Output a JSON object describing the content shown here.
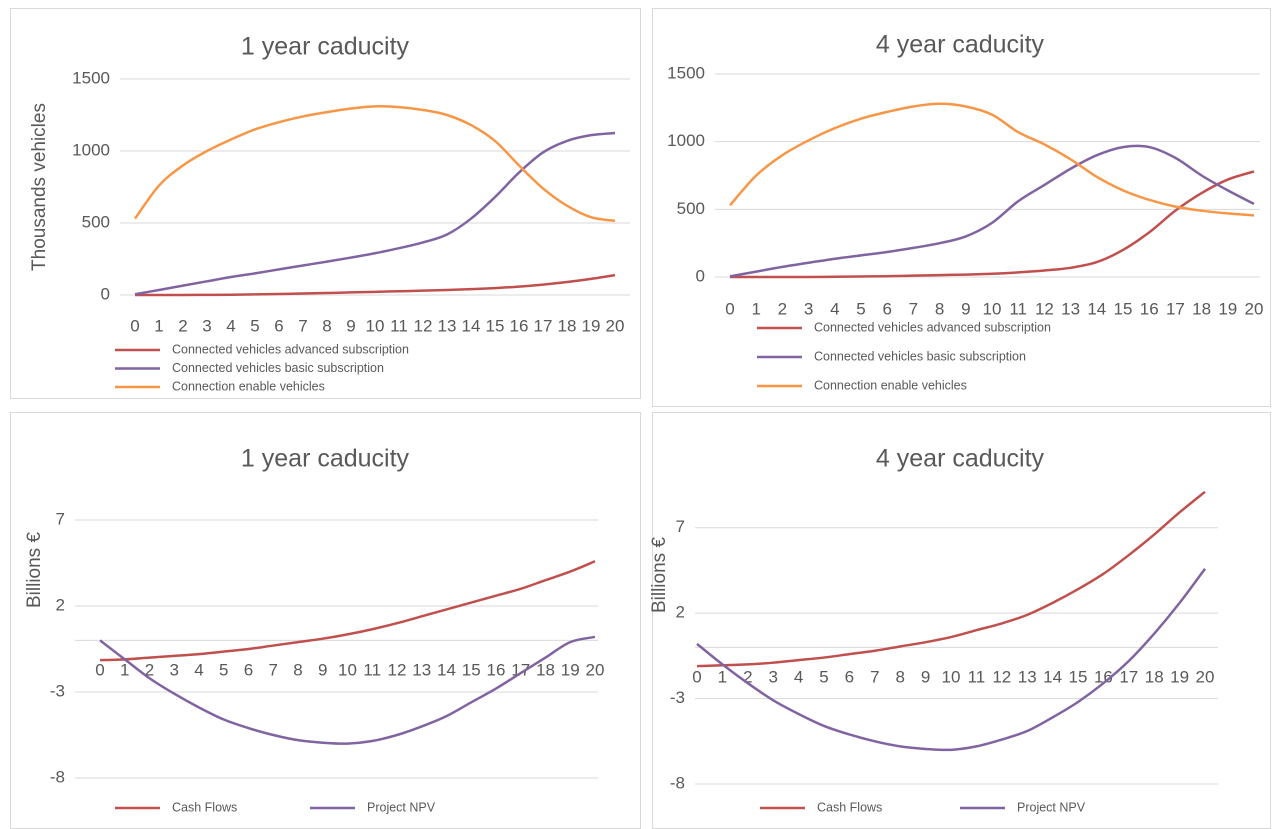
{
  "chart_data": [
    {
      "type": "line",
      "title": "1 year caducity",
      "y_label": "Thousands vehicles",
      "categories": [
        "0",
        "1",
        "2",
        "3",
        "4",
        "5",
        "6",
        "7",
        "8",
        "9",
        "10",
        "11",
        "12",
        "13",
        "14",
        "15",
        "16",
        "17",
        "18",
        "19",
        "20"
      ],
      "series": [
        {
          "name": "Connected vehicles advanced subscription",
          "color": "#c0504d",
          "values": [
            0,
            0,
            0,
            1,
            2,
            4,
            7,
            10,
            14,
            18,
            22,
            26,
            30,
            35,
            41,
            48,
            58,
            72,
            90,
            112,
            138
          ]
        },
        {
          "name": "Connected vehicles basic subscription",
          "color": "#8064a2",
          "values": [
            5,
            35,
            65,
            95,
            125,
            150,
            178,
            205,
            232,
            260,
            290,
            325,
            365,
            420,
            530,
            680,
            850,
            990,
            1070,
            1110,
            1125
          ]
        },
        {
          "name": "Connection enable vehicles",
          "color": "#f79646",
          "values": [
            530,
            760,
            900,
            1000,
            1080,
            1150,
            1200,
            1240,
            1270,
            1295,
            1310,
            1305,
            1285,
            1250,
            1180,
            1070,
            900,
            740,
            620,
            540,
            515
          ]
        }
      ],
      "ylim": [
        0,
        1500
      ],
      "yticks": [
        0,
        500,
        1000,
        1500
      ],
      "grid": true,
      "legend": "bottom"
    },
    {
      "type": "line",
      "title": "4 year caducity",
      "categories": [
        "0",
        "1",
        "2",
        "3",
        "4",
        "5",
        "6",
        "7",
        "8",
        "9",
        "10",
        "11",
        "12",
        "13",
        "14",
        "15",
        "16",
        "17",
        "18",
        "19",
        "20"
      ],
      "series": [
        {
          "name": "Connected vehicles advanced subscription",
          "color": "#c0504d",
          "values": [
            0,
            0,
            0,
            0,
            2,
            4,
            6,
            10,
            14,
            18,
            24,
            34,
            48,
            68,
            110,
            200,
            330,
            490,
            620,
            720,
            780
          ]
        },
        {
          "name": "Connected vehicles basic subscription",
          "color": "#8064a2",
          "values": [
            5,
            40,
            75,
            105,
            135,
            160,
            185,
            215,
            250,
            300,
            400,
            560,
            680,
            800,
            900,
            960,
            960,
            880,
            750,
            640,
            540
          ]
        },
        {
          "name": "Connection enable vehicles",
          "color": "#f79646",
          "values": [
            530,
            750,
            900,
            1010,
            1100,
            1170,
            1220,
            1260,
            1280,
            1260,
            1200,
            1070,
            980,
            870,
            740,
            640,
            570,
            520,
            490,
            470,
            455
          ]
        }
      ],
      "ylim": [
        0,
        1500
      ],
      "yticks": [
        0,
        500,
        1000,
        1500
      ],
      "grid": true,
      "legend": "bottom"
    },
    {
      "type": "line",
      "title": "1 year caducity",
      "y_label": "Billions €",
      "categories": [
        "0",
        "1",
        "2",
        "3",
        "4",
        "5",
        "6",
        "7",
        "8",
        "9",
        "10",
        "11",
        "12",
        "13",
        "14",
        "15",
        "16",
        "17",
        "18",
        "19",
        "20"
      ],
      "series": [
        {
          "name": "Cash Flows",
          "color": "#c0504d",
          "values": [
            -1.15,
            -1.1,
            -1.0,
            -0.9,
            -0.8,
            -0.65,
            -0.5,
            -0.3,
            -0.1,
            0.1,
            0.35,
            0.65,
            1.0,
            1.4,
            1.8,
            2.2,
            2.6,
            3.0,
            3.5,
            4.0,
            4.6
          ]
        },
        {
          "name": "Project NPV",
          "color": "#8064a2",
          "values": [
            0,
            -1.1,
            -2.2,
            -3.1,
            -3.9,
            -4.6,
            -5.1,
            -5.5,
            -5.8,
            -5.95,
            -6.0,
            -5.85,
            -5.5,
            -5.0,
            -4.4,
            -3.6,
            -2.8,
            -1.9,
            -1.0,
            -0.1,
            0.2
          ]
        }
      ],
      "ylim": [
        -8,
        9.5
      ],
      "yticks": [
        -8,
        -3,
        2,
        7
      ],
      "grid": true,
      "legend": "bottom"
    },
    {
      "type": "line",
      "title": "4 year caducity",
      "y_label": "Billions €",
      "categories": [
        "0",
        "1",
        "2",
        "3",
        "4",
        "5",
        "6",
        "7",
        "8",
        "9",
        "10",
        "11",
        "12",
        "13",
        "14",
        "15",
        "16",
        "17",
        "18",
        "19",
        "20"
      ],
      "series": [
        {
          "name": "Cash Flows",
          "color": "#c0504d",
          "values": [
            -1.1,
            -1.05,
            -1.0,
            -0.9,
            -0.75,
            -0.6,
            -0.4,
            -0.2,
            0.05,
            0.3,
            0.6,
            1.0,
            1.4,
            1.9,
            2.6,
            3.4,
            4.3,
            5.4,
            6.6,
            7.9,
            9.1
          ]
        },
        {
          "name": "Project NPV",
          "color": "#8064a2",
          "values": [
            0.2,
            -1.0,
            -2.1,
            -3.1,
            -3.9,
            -4.6,
            -5.1,
            -5.5,
            -5.8,
            -5.95,
            -6.0,
            -5.8,
            -5.4,
            -4.9,
            -4.1,
            -3.2,
            -2.1,
            -0.8,
            0.8,
            2.6,
            4.6
          ]
        }
      ],
      "ylim": [
        -8,
        9.5
      ],
      "yticks": [
        -8,
        -3,
        2,
        7
      ],
      "grid": true,
      "legend": "bottom"
    }
  ]
}
